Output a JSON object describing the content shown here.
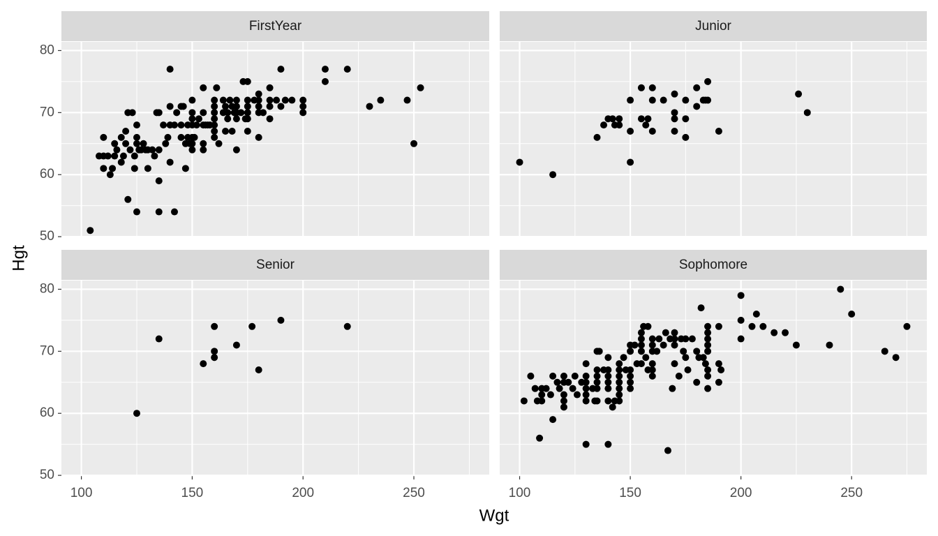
{
  "chart_data": {
    "type": "scatter",
    "xlabel": "Wgt",
    "ylabel": "Hgt",
    "color": "#000000",
    "grid": true,
    "xlim": [
      91,
      284
    ],
    "ylim": [
      49.9,
      81.4
    ],
    "xticks": [
      100,
      150,
      200,
      250
    ],
    "yticks": [
      50,
      60,
      70,
      80
    ],
    "facets": [
      {
        "title": "FirstYear",
        "x": [
          104,
          108,
          110,
          110,
          110,
          112,
          113,
          114,
          115,
          115,
          116,
          118,
          118,
          119,
          120,
          120,
          121,
          121,
          122,
          123,
          124,
          124,
          125,
          125,
          125,
          125,
          126,
          127,
          128,
          129,
          130,
          130,
          132,
          133,
          134,
          135,
          135,
          135,
          135,
          137,
          138,
          139,
          140,
          140,
          140,
          140,
          142,
          142,
          143,
          145,
          145,
          145,
          146,
          147,
          147,
          148,
          148,
          149,
          150,
          150,
          150,
          150,
          150,
          150,
          150,
          151,
          152,
          153,
          155,
          155,
          155,
          155,
          155,
          156,
          157,
          158,
          160,
          160,
          160,
          160,
          160,
          160,
          160,
          161,
          162,
          164,
          164,
          165,
          165,
          166,
          166,
          167,
          168,
          168,
          169,
          170,
          170,
          170,
          170,
          170,
          172,
          173,
          174,
          175,
          175,
          175,
          175,
          175,
          175,
          178,
          180,
          180,
          180,
          180,
          180,
          182,
          185,
          185,
          185,
          185,
          188,
          190,
          190,
          192,
          195,
          200,
          200,
          200,
          210,
          210,
          220,
          230,
          235,
          247,
          250,
          253
        ],
        "y": [
          51,
          63,
          63,
          61,
          66,
          63,
          60,
          61,
          65,
          63,
          64,
          66,
          62,
          63,
          67,
          65,
          70,
          56,
          64,
          70,
          61,
          63,
          68,
          66,
          65,
          54,
          64,
          64,
          65,
          64,
          61,
          64,
          64,
          63,
          70,
          70,
          64,
          59,
          54,
          68,
          65,
          66,
          77,
          71,
          68,
          62,
          68,
          54,
          70,
          71,
          68,
          66,
          71,
          65,
          61,
          68,
          66,
          65,
          72,
          70,
          69,
          68,
          66,
          65,
          64,
          66,
          68,
          69,
          74,
          70,
          68,
          65,
          64,
          68,
          68,
          68,
          72,
          71,
          70,
          69,
          68,
          67,
          66,
          74,
          65,
          72,
          70,
          67,
          71,
          70,
          69,
          72,
          71,
          67,
          70,
          72,
          71,
          70,
          64,
          69,
          70,
          75,
          69,
          75,
          72,
          71,
          70,
          69,
          67,
          72,
          73,
          72,
          71,
          70,
          66,
          70,
          74,
          72,
          71,
          69,
          72,
          77,
          71,
          72,
          72,
          72,
          71,
          70,
          77,
          75,
          77,
          71,
          72,
          72,
          65,
          74
        ]
      },
      {
        "title": "Junior",
        "x": [
          100,
          115,
          135,
          138,
          140,
          142,
          143,
          145,
          145,
          150,
          150,
          150,
          155,
          155,
          157,
          158,
          160,
          160,
          160,
          165,
          170,
          170,
          170,
          170,
          175,
          175,
          175,
          180,
          180,
          183,
          184,
          185,
          185,
          190,
          226,
          230
        ],
        "y": [
          62,
          60,
          66,
          68,
          69,
          69,
          68,
          69,
          68,
          72,
          67,
          62,
          74,
          69,
          68,
          69,
          74,
          72,
          67,
          72,
          73,
          70,
          69,
          67,
          72,
          69,
          66,
          74,
          71,
          72,
          72,
          75,
          72,
          67,
          73,
          70
        ]
      },
      {
        "title": "Senior",
        "x": [
          125,
          135,
          155,
          160,
          160,
          160,
          170,
          177,
          180,
          190,
          220
        ],
        "y": [
          60,
          72,
          68,
          74,
          70,
          69,
          71,
          74,
          67,
          75,
          74
        ]
      },
      {
        "title": "Sophomore",
        "x": [
          102,
          105,
          107,
          108,
          109,
          110,
          110,
          110,
          112,
          114,
          115,
          115,
          117,
          118,
          120,
          120,
          120,
          120,
          120,
          122,
          124,
          125,
          126,
          128,
          130,
          130,
          130,
          130,
          130,
          130,
          130,
          133,
          134,
          135,
          135,
          135,
          135,
          135,
          135,
          136,
          138,
          140,
          140,
          140,
          140,
          140,
          140,
          140,
          142,
          143,
          145,
          145,
          145,
          145,
          145,
          145,
          145,
          147,
          148,
          150,
          150,
          150,
          150,
          150,
          150,
          152,
          153,
          155,
          155,
          155,
          155,
          155,
          156,
          157,
          158,
          158,
          160,
          160,
          160,
          160,
          160,
          160,
          162,
          163,
          165,
          166,
          167,
          168,
          169,
          170,
          170,
          170,
          170,
          172,
          173,
          174,
          175,
          175,
          176,
          178,
          180,
          180,
          181,
          182,
          183,
          184,
          185,
          185,
          185,
          185,
          185,
          185,
          185,
          185,
          190,
          190,
          190,
          191,
          200,
          200,
          200,
          205,
          207,
          210,
          215,
          220,
          225,
          240,
          245,
          250,
          265,
          270,
          275
        ],
        "y": [
          62,
          66,
          64,
          62,
          56,
          64,
          63,
          62,
          64,
          63,
          66,
          59,
          65,
          64,
          66,
          65,
          63,
          62,
          61,
          65,
          64,
          66,
          63,
          65,
          68,
          66,
          65,
          64,
          63,
          62,
          55,
          64,
          62,
          70,
          67,
          66,
          65,
          64,
          62,
          70,
          67,
          69,
          67,
          66,
          65,
          64,
          62,
          55,
          61,
          62,
          68,
          67,
          66,
          65,
          64,
          63,
          62,
          69,
          67,
          71,
          70,
          67,
          66,
          65,
          64,
          71,
          68,
          73,
          72,
          71,
          70,
          68,
          74,
          69,
          74,
          67,
          72,
          71,
          70,
          68,
          67,
          66,
          70,
          72,
          71,
          73,
          54,
          72,
          64,
          73,
          72,
          71,
          68,
          66,
          72,
          70,
          69,
          72,
          67,
          72,
          70,
          65,
          69,
          77,
          69,
          68,
          74,
          73,
          72,
          71,
          70,
          67,
          66,
          64,
          74,
          68,
          65,
          67,
          79,
          75,
          72,
          74,
          76,
          74,
          73,
          73,
          71,
          71,
          80,
          76,
          70,
          69,
          74
        ]
      }
    ]
  }
}
